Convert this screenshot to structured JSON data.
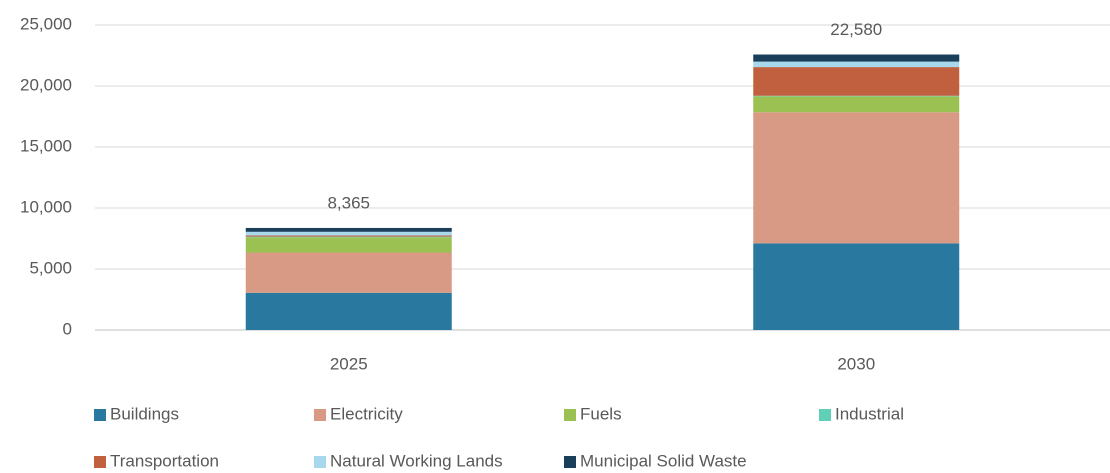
{
  "chart_data": {
    "type": "stacked_bar",
    "categories": [
      "2025",
      "2030"
    ],
    "series": [
      {
        "name": "Buildings",
        "color": "#2878a0",
        "values": [
          3050,
          7100
        ]
      },
      {
        "name": "Electricity",
        "color": "#d89a85",
        "values": [
          3300,
          10750
        ]
      },
      {
        "name": "Fuels",
        "color": "#9bc153",
        "values": [
          1250,
          1300
        ]
      },
      {
        "name": "Industrial",
        "color": "#5fd0b5",
        "values": [
          50,
          50
        ]
      },
      {
        "name": "Transportation",
        "color": "#c0603e",
        "values": [
          100,
          2350
        ]
      },
      {
        "name": "Natural Working Lands",
        "color": "#a8d8ec",
        "values": [
          300,
          450
        ]
      },
      {
        "name": "Municipal Solid Waste",
        "color": "#1a3f5a",
        "values": [
          315,
          580
        ]
      }
    ],
    "totals": [
      8365,
      22580
    ],
    "total_labels": [
      "8,365",
      "22,580"
    ],
    "ylim": [
      0,
      25000
    ],
    "yticks": [
      0,
      {
        "value": 5000,
        "label": "5,000"
      },
      {
        "value": 10000,
        "label": "10,000"
      },
      {
        "value": 15000,
        "label": "15,000"
      },
      {
        "value": 20000,
        "label": "20,000"
      },
      {
        "value": 25000,
        "label": "25,000"
      }
    ],
    "grid": true
  }
}
